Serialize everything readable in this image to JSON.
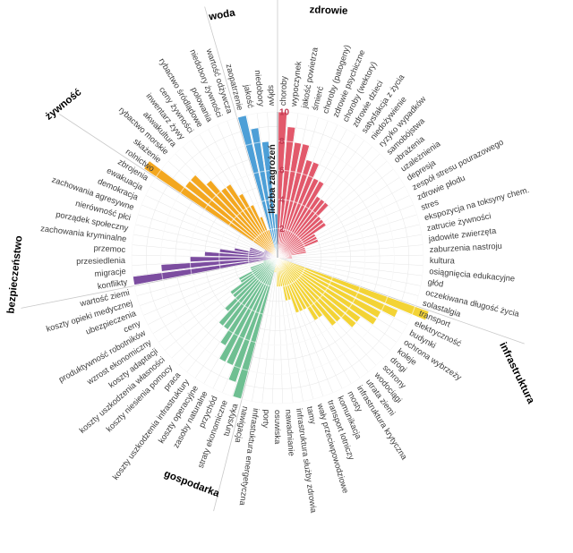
{
  "chart_data": {
    "type": "bar",
    "coordinate": "polar",
    "title": "",
    "radial_axis": {
      "label": "liczba zagrożeń",
      "ticks": [
        2,
        4,
        6,
        8,
        10
      ],
      "tick_color": "#c23a52",
      "max": 11
    },
    "grid": {
      "rings": 10,
      "on": true,
      "color": "#e6e6e6"
    },
    "legend_position": "sector-headers",
    "groups": [
      {
        "name": "zdrowie",
        "color": "#e2596b",
        "items": [
          {
            "label": "choroby",
            "value": 10
          },
          {
            "label": "wypoczynek",
            "value": 9
          },
          {
            "label": "jakość powietrza",
            "value": 8
          },
          {
            "label": "śmierć",
            "value": 8
          },
          {
            "label": "choroby (patogeny)",
            "value": 7
          },
          {
            "label": "zdrowie psychiczne",
            "value": 7
          },
          {
            "label": "choroby (wektory)",
            "value": 6
          },
          {
            "label": "zdrowie dzieci",
            "value": 6
          },
          {
            "label": "satysfakcja z życia",
            "value": 5
          },
          {
            "label": "niedożywienie",
            "value": 5
          },
          {
            "label": "ryzyko wypadków",
            "value": 5
          },
          {
            "label": "samobójstwa",
            "value": 4
          },
          {
            "label": "obrażenia",
            "value": 4
          },
          {
            "label": "uzależnienia",
            "value": 4
          },
          {
            "label": "depresja",
            "value": 3
          },
          {
            "label": "zespół stresu pourazowego",
            "value": 3
          },
          {
            "label": "zdrowie płodu",
            "value": 3
          },
          {
            "label": "stres",
            "value": 2
          },
          {
            "label": "ekspozycja na toksyny chem.",
            "value": 2
          },
          {
            "label": "zatrucie żywności",
            "value": 2
          },
          {
            "label": "jadowite zwierzęta",
            "value": 1
          },
          {
            "label": "zaburzenia nastroju",
            "value": 1
          },
          {
            "label": "kultura",
            "value": 1
          },
          {
            "label": "osiągnięcia edukacyjne",
            "value": 0
          },
          {
            "label": "głód",
            "value": 0
          },
          {
            "label": "oczekiwana długość życia",
            "value": 0
          },
          {
            "label": "solastalgia",
            "value": 0
          }
        ]
      },
      {
        "name": "infrastruktura",
        "color": "#f3d335",
        "items": [
          {
            "label": "transport",
            "value": 11
          },
          {
            "label": "elektryczność",
            "value": 9
          },
          {
            "label": "budynki",
            "value": 8
          },
          {
            "label": "ochrona wybrzeży",
            "value": 8
          },
          {
            "label": "koleje",
            "value": 7
          },
          {
            "label": "drogi",
            "value": 7
          },
          {
            "label": "schrony",
            "value": 6
          },
          {
            "label": "wodociągi",
            "value": 6
          },
          {
            "label": "utrata ziemi",
            "value": 5
          },
          {
            "label": "infrastruktura krytyczna",
            "value": 5
          },
          {
            "label": "mosty",
            "value": 4
          },
          {
            "label": "komunikacja",
            "value": 4
          },
          {
            "label": "transport lotniczy",
            "value": 4
          },
          {
            "label": "wały przeciwpowodziowe",
            "value": 3
          },
          {
            "label": "tamy",
            "value": 3
          },
          {
            "label": "infrastruktura służby zdrowia",
            "value": 2
          },
          {
            "label": "nawadnianie",
            "value": 2
          },
          {
            "label": "osuwiska",
            "value": 2
          },
          {
            "label": "porty",
            "value": 1
          },
          {
            "label": "infrastuktura energetyczna",
            "value": 1
          },
          {
            "label": "nawigacja",
            "value": 1
          }
        ]
      },
      {
        "name": "gospodarka",
        "color": "#6fbf92",
        "items": [
          {
            "label": "turystyka",
            "value": 10
          },
          {
            "label": "straty ekonomiczne",
            "value": 9
          },
          {
            "label": "przychód",
            "value": 8
          },
          {
            "label": "zasoby naturalne",
            "value": 8
          },
          {
            "label": "koszty operacyjne",
            "value": 7
          },
          {
            "label": "koszty uszkodzenia infrastruktury",
            "value": 6
          },
          {
            "label": "praca",
            "value": 6
          },
          {
            "label": "koszty niesienia pomocy",
            "value": 5
          },
          {
            "label": "koszty uszkodzenia własności",
            "value": 4
          },
          {
            "label": "koszty adaptacji",
            "value": 4
          },
          {
            "label": "wzrost ekonomiczny",
            "value": 3
          },
          {
            "label": "produktywność robotników",
            "value": 3
          },
          {
            "label": "ceny",
            "value": 2
          },
          {
            "label": "ubezpieczenia",
            "value": 2
          },
          {
            "label": "koszty opieki medycznej",
            "value": 1
          },
          {
            "label": "wartość ziemi",
            "value": 1
          }
        ]
      },
      {
        "name": "bezpieczeństwo",
        "color": "#7c4da0",
        "items": [
          {
            "label": "konflikty",
            "value": 10
          },
          {
            "label": "migracje",
            "value": 8
          },
          {
            "label": "przesiedlenia",
            "value": 6
          },
          {
            "label": "przemoc",
            "value": 5
          },
          {
            "label": "zachowania kryminalne",
            "value": 4
          },
          {
            "label": "porządek społeczny",
            "value": 3
          },
          {
            "label": "nierówność płci",
            "value": 2
          },
          {
            "label": "zachowania agresywne",
            "value": 2
          },
          {
            "label": "demokracja",
            "value": 1
          },
          {
            "label": "ewakuacja",
            "value": 1
          },
          {
            "label": "zbrojenia",
            "value": 1
          }
        ]
      },
      {
        "name": "żywność",
        "color": "#f3a71f",
        "items": [
          {
            "label": "rolnictwo",
            "value": 11
          },
          {
            "label": "skażenie",
            "value": 8
          },
          {
            "label": "rybactwo morskie",
            "value": 8
          },
          {
            "label": "akwakultura",
            "value": 7
          },
          {
            "label": "inwentarz żywy",
            "value": 6
          },
          {
            "label": "ceny żywności",
            "value": 6
          },
          {
            "label": "rybactwo śródlądowe",
            "value": 5
          },
          {
            "label": "polowania",
            "value": 4
          },
          {
            "label": "niedobory żywności",
            "value": 3
          },
          {
            "label": "wartość odżywcza",
            "value": 2
          }
        ]
      },
      {
        "name": "woda",
        "color": "#4d9fd7",
        "items": [
          {
            "label": "zaopatrzenie",
            "value": 10
          },
          {
            "label": "jakość",
            "value": 9
          },
          {
            "label": "niedobory",
            "value": 8
          },
          {
            "label": "spływ",
            "value": 3
          }
        ]
      }
    ]
  }
}
